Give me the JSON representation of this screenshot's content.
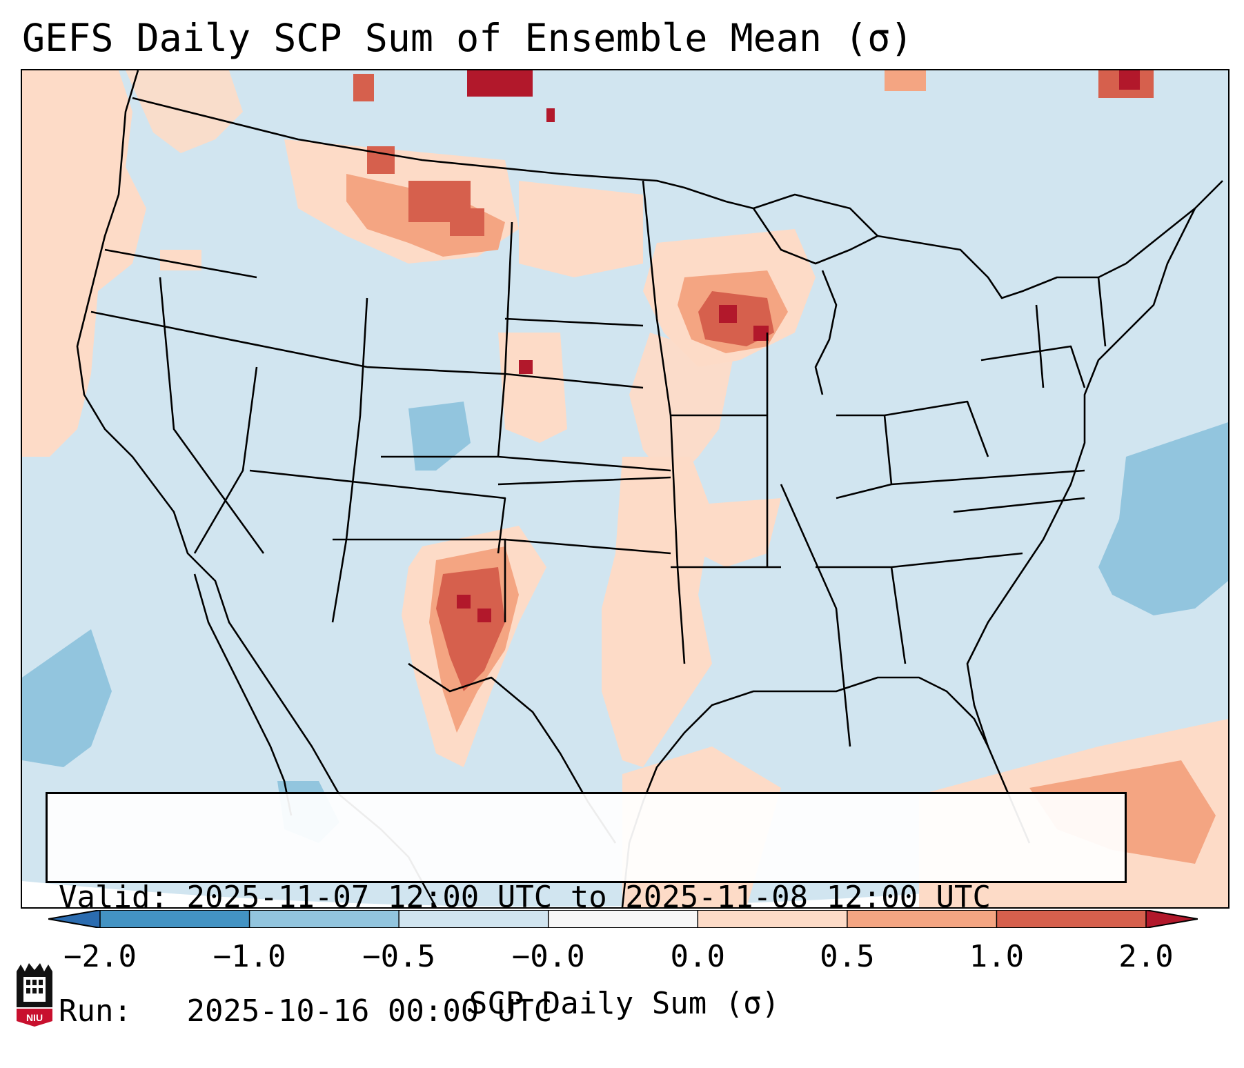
{
  "title": "GEFS Daily SCP Sum of Ensemble Mean (σ)",
  "valid_box": {
    "valid_label": "Valid:",
    "valid_value": "2025-11-07 12:00 UTC to 2025-11-08 12:00 UTC",
    "run_label": "Run:",
    "run_value": "2025-10-16 00:00 UTC"
  },
  "colorbar": {
    "label": "SCP Daily Sum (σ)",
    "ticks": [
      "−2.0",
      "−1.0",
      "−0.5",
      "−0.0",
      "0.0",
      "0.5",
      "1.0",
      "2.0"
    ],
    "bins": [
      {
        "range": "< −2.0",
        "color": "#2b6cb0"
      },
      {
        "range": "−2.0 to −1.0",
        "color": "#4393c3"
      },
      {
        "range": "−1.0 to −0.5",
        "color": "#92c5de"
      },
      {
        "range": "−0.5 to −0.0",
        "color": "#d1e5f0"
      },
      {
        "range": "−0.0 to 0.0",
        "color": "#f7f7f7"
      },
      {
        "range": "0.0 to 0.5",
        "color": "#fddbc7"
      },
      {
        "range": "0.5 to 1.0",
        "color": "#f4a582"
      },
      {
        "range": "1.0 to 2.0",
        "color": "#d6604d"
      },
      {
        "range": "> 2.0",
        "color": "#b2182b"
      }
    ]
  },
  "map": {
    "background_color": "#d1e5f0",
    "field_regions": [
      {
        "name": "pacific-northwest-offshore",
        "level": "0.0 to 0.5"
      },
      {
        "name": "northern-rockies-montana",
        "level": "1.0 to 2.0"
      },
      {
        "name": "upper-midwest-wisconsin",
        "level": "1.0 to 2.0"
      },
      {
        "name": "west-texas-new-mexico",
        "level": "1.0 to 2.0"
      },
      {
        "name": "southern-plains-texas",
        "level": "0.0 to 0.5"
      },
      {
        "name": "bahamas-caribbean",
        "level": "0.5 to 1.0"
      },
      {
        "name": "north-dakota-saskatchewan",
        "level": "> 2.0"
      },
      {
        "name": "atlantic-offshore",
        "level": "−1.0 to −0.5"
      },
      {
        "name": "eastern-pacific",
        "level": "−1.0 to −0.5"
      }
    ]
  },
  "logo": {
    "text": "NIU"
  }
}
